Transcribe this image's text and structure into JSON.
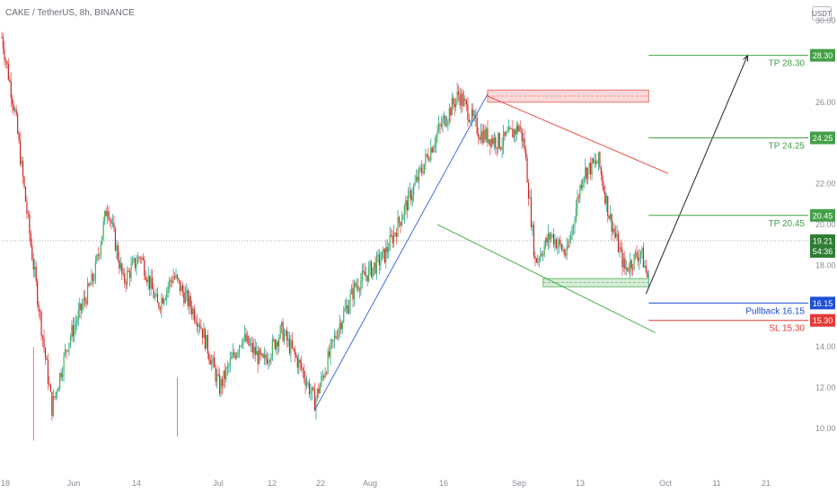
{
  "header": {
    "title": "CAKE / TetherUS, 8h, BINANCE",
    "currency_badge": "USDT"
  },
  "colors": {
    "up": "#26a69a",
    "up_body": "#4caf50",
    "down": "#ef5350",
    "down_body": "#c62828",
    "grid_text": "#8a8d97",
    "tp": "#43a047",
    "pullback": "#1e4fd6",
    "sl": "#e53935",
    "trend_blue": "#3c6fe0",
    "trend_red": "#ef5350",
    "trend_green": "#4caf50",
    "arrow": "#222222"
  },
  "chart_data": {
    "type": "candlestick",
    "symbol": "CAKE / TetherUS",
    "interval": "8h",
    "exchange": "BINANCE",
    "x_tick_labels": [
      "18",
      "Jun",
      "14",
      "Jul",
      "12",
      "22",
      "Aug",
      "16",
      "Sep",
      "13",
      "Oct",
      "11",
      "21"
    ],
    "y_tick_labels": [
      "10.00",
      "12.00",
      "14.00",
      "18.00",
      "20.00",
      "22.00",
      "26.00",
      "30.00"
    ],
    "ylim": [
      9.0,
      31.0
    ],
    "last_price": "19.21",
    "countdown": "54:36",
    "series_close_anchors": [
      {
        "t": 0,
        "v": 29.2
      },
      {
        "t": 10,
        "v": 25.5
      },
      {
        "t": 22,
        "v": 19.0
      },
      {
        "t": 38,
        "v": 11.0
      },
      {
        "t": 50,
        "v": 14.2
      },
      {
        "t": 70,
        "v": 17.5
      },
      {
        "t": 80,
        "v": 21.0
      },
      {
        "t": 92,
        "v": 17.2
      },
      {
        "t": 105,
        "v": 18.5
      },
      {
        "t": 118,
        "v": 16.0
      },
      {
        "t": 130,
        "v": 17.5
      },
      {
        "t": 150,
        "v": 15.2
      },
      {
        "t": 165,
        "v": 12.0
      },
      {
        "t": 182,
        "v": 14.5
      },
      {
        "t": 198,
        "v": 13.2
      },
      {
        "t": 212,
        "v": 14.8
      },
      {
        "t": 228,
        "v": 12.8
      },
      {
        "t": 237,
        "v": 11.3
      },
      {
        "t": 255,
        "v": 15.0
      },
      {
        "t": 268,
        "v": 17.0
      },
      {
        "t": 290,
        "v": 18.5
      },
      {
        "t": 310,
        "v": 21.5
      },
      {
        "t": 330,
        "v": 24.5
      },
      {
        "t": 346,
        "v": 26.4
      },
      {
        "t": 362,
        "v": 24.5
      },
      {
        "t": 378,
        "v": 24.0
      },
      {
        "t": 392,
        "v": 24.8
      },
      {
        "t": 396,
        "v": 23.8
      },
      {
        "t": 404,
        "v": 18.2
      },
      {
        "t": 416,
        "v": 19.5
      },
      {
        "t": 428,
        "v": 18.5
      },
      {
        "t": 440,
        "v": 22.5
      },
      {
        "t": 452,
        "v": 23.1
      },
      {
        "t": 460,
        "v": 20.5
      },
      {
        "t": 472,
        "v": 17.8
      },
      {
        "t": 484,
        "v": 18.7
      },
      {
        "t": 490,
        "v": 17.2
      }
    ],
    "levels": [
      {
        "label": "TP 28.30",
        "price": "28.30",
        "kind": "tp"
      },
      {
        "label": "TP 24.25",
        "price": "24.25",
        "kind": "tp"
      },
      {
        "label": "TP 20.45",
        "price": "20.45",
        "kind": "tp"
      },
      {
        "label": "Pullback 16.15",
        "price": "16.15",
        "kind": "pullback"
      },
      {
        "label": "SL 15.30",
        "price": "15.30",
        "kind": "sl"
      }
    ],
    "trendlines": [
      {
        "from": {
          "t": 237,
          "v": 10.9
        },
        "to": {
          "t": 368,
          "v": 26.4
        },
        "color": "trend_blue"
      },
      {
        "from": {
          "t": 368,
          "v": 26.3
        },
        "to": {
          "t": 505,
          "v": 22.5
        },
        "color": "trend_red"
      },
      {
        "from": {
          "t": 330,
          "v": 20.0
        },
        "to": {
          "t": 495,
          "v": 14.7
        },
        "color": "trend_green"
      }
    ],
    "zones": [
      {
        "t0": 368,
        "t1": 490,
        "v0": 26.0,
        "v1": 26.6,
        "kind": "resistance"
      },
      {
        "t0": 410,
        "t1": 490,
        "v0": 16.95,
        "v1": 17.35,
        "kind": "support"
      }
    ],
    "projection_arrow": {
      "from": {
        "t": 488,
        "v": 16.6
      },
      "to": {
        "t": 565,
        "v": 28.3
      }
    }
  }
}
